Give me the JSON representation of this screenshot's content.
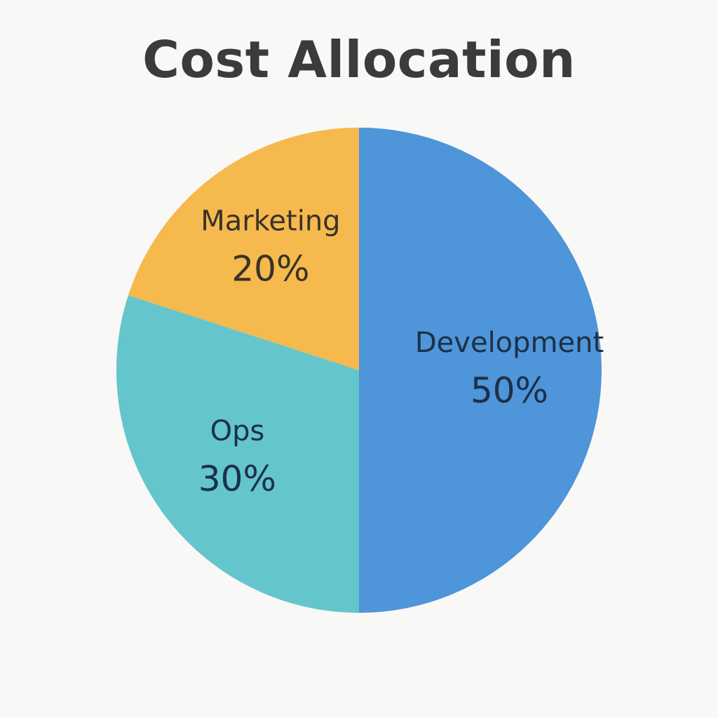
{
  "chart_data": {
    "type": "pie",
    "title": "Cost Allocation",
    "slices": [
      {
        "label": "Development",
        "value": 50,
        "display": "50%",
        "color": "#4e95d9",
        "text_color": "#1c3048"
      },
      {
        "label": "Ops",
        "value": 30,
        "display": "30%",
        "color": "#64c6cc",
        "text_color": "#1c3048"
      },
      {
        "label": "Marketing",
        "value": 20,
        "display": "20%",
        "color": "#f5b94d",
        "text_color": "#3a3226"
      }
    ]
  }
}
